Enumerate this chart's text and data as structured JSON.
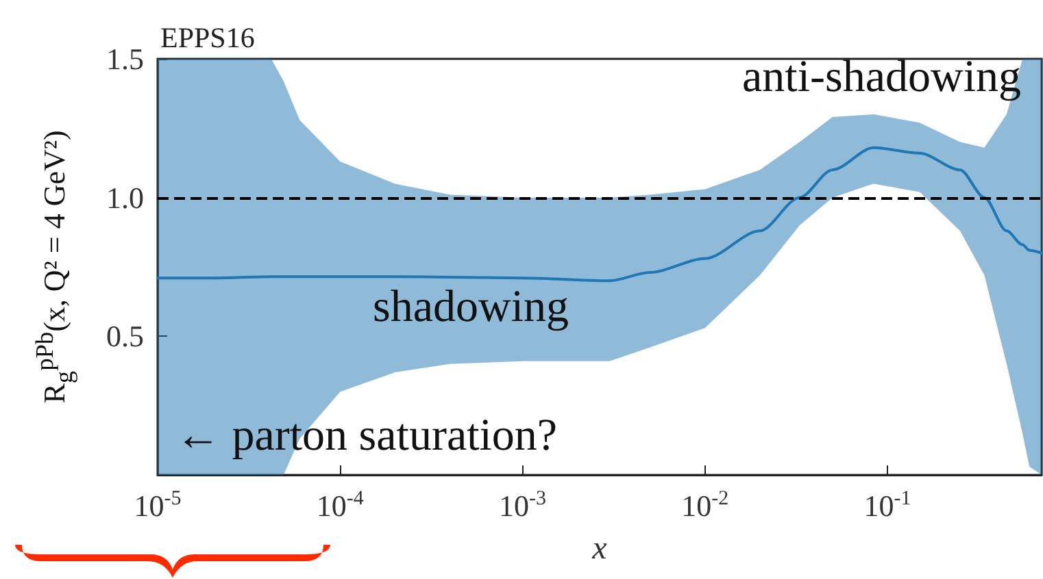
{
  "chart_data": {
    "type": "line",
    "title": "EPPS16",
    "xlabel": "x",
    "ylabel": "R$_{g}$$^{pPb}$(x, Q² = 4 GeV²)",
    "annotations": [
      "anti-shadowing",
      "shadowing",
      "← parton saturation?"
    ],
    "x": [
      1e-05,
      2e-05,
      4.2e-05,
      4.9e-05,
      6e-05,
      0.0001,
      0.0002,
      0.0004,
      0.001,
      0.003,
      0.005,
      0.01,
      0.02,
      0.033,
      0.05,
      0.084,
      0.15,
      0.25,
      0.34,
      0.45,
      0.55,
      0.6,
      0.7
    ],
    "series": [
      {
        "color": "#1f77b4",
        "values": [
          0.71,
          0.71,
          0.715,
          0.715,
          0.715,
          0.715,
          0.715,
          0.713,
          0.71,
          0.7,
          0.73,
          0.78,
          0.88,
          1.0,
          1.1,
          1.18,
          1.16,
          1.1,
          1.0,
          0.88,
          0.83,
          0.81,
          0.8
        ],
        "upper": [
          1.5,
          1.5,
          1.5,
          1.42,
          1.28,
          1.13,
          1.05,
          1.01,
          1.0,
          1.0,
          1.01,
          1.03,
          1.1,
          1.2,
          1.29,
          1.3,
          1.27,
          1.2,
          1.18,
          1.3,
          1.5,
          1.5,
          1.5
        ],
        "lower": [
          0,
          0,
          0,
          0,
          0.13,
          0.3,
          0.37,
          0.4,
          0.41,
          0.41,
          0.46,
          0.53,
          0.72,
          0.9,
          1.0,
          1.05,
          1.02,
          0.88,
          0.72,
          0.4,
          0.15,
          0.03,
          0
        ]
      }
    ],
    "xlim": [
      1e-05,
      0.7
    ],
    "ylim": [
      0,
      1.5
    ],
    "log": "x",
    "xticks": [
      {
        "value": 1e-05,
        "label": "10$^{-5}$"
      },
      {
        "value": 0.0001,
        "label": "10$^{-4}$"
      },
      {
        "value": 0.001,
        "label": "10$^{-3}$"
      },
      {
        "value": 0.01,
        "label": "10$^{-2}$"
      },
      {
        "value": 0.1,
        "label": "10$^{-1}$"
      }
    ],
    "yticks": [
      {
        "value": 0.5,
        "label": "0.5"
      },
      {
        "value": 1.0,
        "label": "1.0"
      },
      {
        "value": 1.5,
        "label": "1.5"
      }
    ],
    "ref_lines": [
      {
        "axis": "y",
        "value": 1.0,
        "color": "#000000",
        "line_style": "dashed"
      }
    ],
    "grid": false,
    "marker": "none",
    "line_style": "solid"
  }
}
